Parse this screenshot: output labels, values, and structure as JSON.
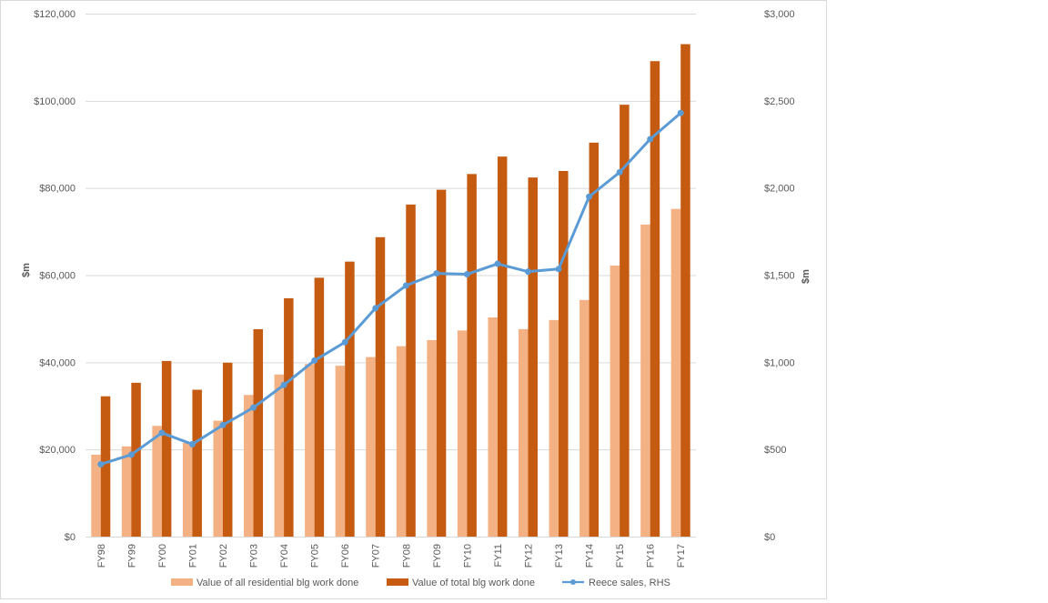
{
  "chart_data": {
    "type": "bar",
    "categories": [
      "FY98",
      "FY99",
      "FY00",
      "FY01",
      "FY02",
      "FY03",
      "FY04",
      "FY05",
      "FY06",
      "FY07",
      "FY08",
      "FY09",
      "FY10",
      "FY11",
      "FY12",
      "FY13",
      "FY14",
      "FY15",
      "FY16",
      "FY17"
    ],
    "series": [
      {
        "name": "Value of all residential blg work done",
        "type": "bar",
        "axis": "left",
        "color": "#f4b183",
        "values": [
          18800,
          20700,
          25400,
          21500,
          26600,
          32500,
          37200,
          39600,
          39200,
          41200,
          43700,
          45100,
          47300,
          50300,
          47600,
          49700,
          54300,
          62200,
          71600,
          75200
        ]
      },
      {
        "name": "Value of total blg work done",
        "type": "bar",
        "axis": "left",
        "color": "#c55a11",
        "values": [
          32200,
          35300,
          40300,
          33700,
          39900,
          47600,
          54700,
          59400,
          63100,
          68700,
          76200,
          79600,
          83200,
          87200,
          82400,
          83900,
          90400,
          99100,
          109100,
          113000
        ]
      },
      {
        "name": "Reece sales, RHS",
        "type": "line",
        "axis": "right",
        "color": "#5b9bd5",
        "values": [
          415,
          470,
          595,
          530,
          640,
          740,
          870,
          1010,
          1115,
          1310,
          1440,
          1510,
          1505,
          1565,
          1520,
          1535,
          1950,
          2090,
          2280,
          2430
        ]
      }
    ],
    "ylabel": "$m",
    "ylabel_right": "$m",
    "ylim": [
      0,
      120000
    ],
    "ylim_right": [
      0,
      3000
    ],
    "yticks": [
      "$0",
      "$20,000",
      "$40,000",
      "$60,000",
      "$80,000",
      "$100,000",
      "$120,000"
    ],
    "yticks_right": [
      "$0",
      "$500",
      "$1,000",
      "$1,500",
      "$2,000",
      "$2,500",
      "$3,000"
    ],
    "grid": true,
    "legend_position": "bottom"
  }
}
